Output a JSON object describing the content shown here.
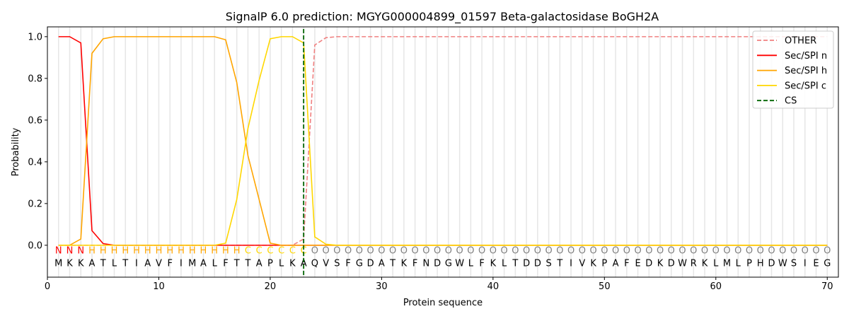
{
  "chart_data": {
    "type": "line",
    "title": "SignalP 6.0 prediction: MGYG000004899_01597 Beta-galactosidase BoGH2A",
    "xlabel": "Protein sequence",
    "ylabel": "Probability",
    "xlim": [
      0,
      71
    ],
    "ylim": [
      -0.153,
      1.047
    ],
    "xticks": [
      0,
      10,
      20,
      30,
      40,
      50,
      60,
      70
    ],
    "yticks": [
      0.0,
      0.2,
      0.4,
      0.6,
      0.8,
      1.0
    ],
    "ytick_labels": [
      "0.0",
      "0.2",
      "0.4",
      "0.6",
      "0.8",
      "1.0"
    ],
    "legend_position": "top-right",
    "sequence": "MKKATLTIAVFIMALFTTAPLKAQVSFGDATKFNDGWLFKLTDDSTIVKPAFEDKDWRKLMLPHDWSIEG",
    "labels": "NNNHHHHHHHHHHHHHHCCCCCCOOOOOOOOOOOOOOOOOOOOOOOOOOOOOOOOOOOOOOOOOOOOOOO",
    "label_colors": {
      "N": "#ff0000",
      "H": "#ffa500",
      "C": "#ffd700",
      "O": "#808080"
    },
    "cs_position": 23,
    "series": [
      {
        "name": "OTHER",
        "color": "#f08080",
        "dash": true,
        "values": [
          0,
          0,
          0,
          0,
          0,
          0,
          0,
          0,
          0,
          0,
          0,
          0,
          0,
          0,
          0,
          0,
          0,
          0,
          0,
          0,
          0,
          0,
          0.03,
          0.96,
          0.995,
          1,
          1,
          1,
          1,
          1,
          1,
          1,
          1,
          1,
          1,
          1,
          1,
          1,
          1,
          1,
          1,
          1,
          1,
          1,
          1,
          1,
          1,
          1,
          1,
          1,
          1,
          1,
          1,
          1,
          1,
          1,
          1,
          1,
          1,
          1,
          1,
          1,
          1,
          1,
          1,
          1,
          1,
          1,
          1,
          1
        ]
      },
      {
        "name": "Sec/SPI n",
        "color": "#ff0000",
        "dash": false,
        "values": [
          1,
          1,
          0.97,
          0.07,
          0.008,
          0,
          0,
          0,
          0,
          0,
          0,
          0,
          0,
          0,
          0,
          0,
          0,
          0,
          0,
          0,
          0,
          0,
          0,
          0,
          0,
          0,
          0,
          0,
          0,
          0,
          0,
          0,
          0,
          0,
          0,
          0,
          0,
          0,
          0,
          0,
          0,
          0,
          0,
          0,
          0,
          0,
          0,
          0,
          0,
          0,
          0,
          0,
          0,
          0,
          0,
          0,
          0,
          0,
          0,
          0,
          0,
          0,
          0,
          0,
          0,
          0,
          0,
          0,
          0,
          0
        ]
      },
      {
        "name": "Sec/SPI h",
        "color": "#ffa500",
        "dash": false,
        "values": [
          0,
          0,
          0.03,
          0.92,
          0.99,
          1,
          1,
          1,
          1,
          1,
          1,
          1,
          1,
          1,
          1,
          0.985,
          0.78,
          0.43,
          0.22,
          0.01,
          0,
          0,
          0,
          0,
          0,
          0,
          0,
          0,
          0,
          0,
          0,
          0,
          0,
          0,
          0,
          0,
          0,
          0,
          0,
          0,
          0,
          0,
          0,
          0,
          0,
          0,
          0,
          0,
          0,
          0,
          0,
          0,
          0,
          0,
          0,
          0,
          0,
          0,
          0,
          0,
          0,
          0,
          0,
          0,
          0,
          0,
          0,
          0,
          0,
          0
        ]
      },
      {
        "name": "Sec/SPI c",
        "color": "#ffd700",
        "dash": false,
        "values": [
          0,
          0,
          0,
          0,
          0,
          0,
          0,
          0,
          0,
          0,
          0,
          0,
          0,
          0,
          0,
          0.01,
          0.22,
          0.56,
          0.79,
          0.99,
          1,
          1,
          0.97,
          0.04,
          0.005,
          0,
          0,
          0,
          0,
          0,
          0,
          0,
          0,
          0,
          0,
          0,
          0,
          0,
          0,
          0,
          0,
          0,
          0,
          0,
          0,
          0,
          0,
          0,
          0,
          0,
          0,
          0,
          0,
          0,
          0,
          0,
          0,
          0,
          0,
          0,
          0,
          0,
          0,
          0,
          0,
          0,
          0,
          0,
          0,
          0
        ]
      },
      {
        "name": "CS",
        "color": "#006400",
        "dash": true,
        "values": []
      }
    ]
  }
}
